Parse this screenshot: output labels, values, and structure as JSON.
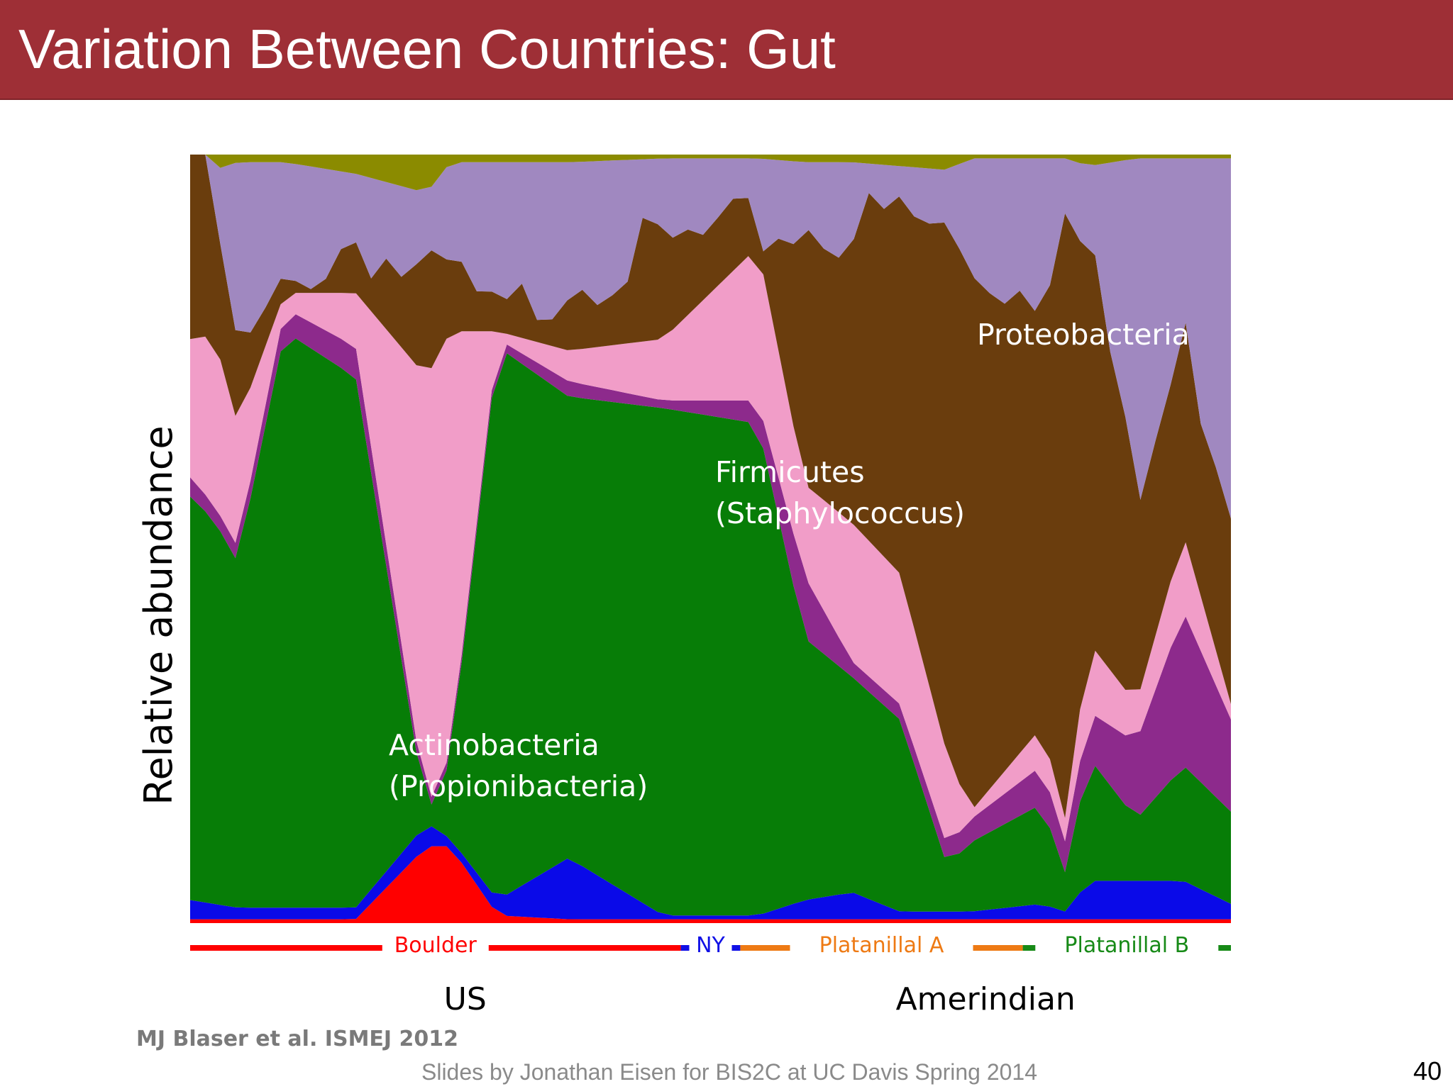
{
  "slide": {
    "title": "Variation Between Countries: Gut",
    "citation": "MJ Blaser et al. ISMEJ 2012",
    "footer": "Slides by Jonathan Eisen for BIS2C at UC Davis Spring 2014",
    "page_number": "40"
  },
  "colors": {
    "title_bar": "#9e2f36",
    "boulder": "#ff0000",
    "ny": "#1010e6",
    "platanillal_a": "#ee7a14",
    "platanillal_b": "#178a17"
  },
  "chart_data": {
    "type": "area",
    "stacked": true,
    "normalized": true,
    "ylabel": "Relative abundance",
    "ylim": [
      0,
      1
    ],
    "annotations": [
      {
        "text": "Proteobacteria",
        "color": "#ffffff"
      },
      {
        "text": "Firmicutes\n(Staphylococcus)",
        "color": "#ffffff"
      },
      {
        "text": "Actinobacteria\n(Propionibacteria)",
        "color": "#ffffff"
      }
    ],
    "groups": [
      {
        "name": "Boulder",
        "color": "#ff0000",
        "start": 0,
        "end": 33
      },
      {
        "name": "NY",
        "color": "#1010e6",
        "start": 33,
        "end": 37
      },
      {
        "name": "Platanillal A",
        "color": "#ee7a14",
        "start": 37,
        "end": 56
      },
      {
        "name": "Platanillal B",
        "color": "#178a17",
        "start": 56,
        "end": 70
      }
    ],
    "categories": [
      {
        "name": "US",
        "start": 0,
        "end": 37
      },
      {
        "name": "Amerindian",
        "start": 37,
        "end": 70
      }
    ],
    "boundaries": [
      0.0,
      0.025,
      0.05,
      0.1,
      0.175,
      0.25,
      0.275,
      0.325,
      0.4,
      0.5,
      0.6,
      0.65,
      0.7,
      0.75,
      0.8,
      0.825,
      0.9,
      0.925,
      0.95,
      1.0,
      1.05,
      1.1
    ],
    "samples": [
      {
        "top": 0.845,
        "reds": 0.005,
        "blue": 0.025,
        "green": 0.525,
        "purple": 0.025,
        "pink": 0.18,
        "brown": 0.3,
        "top_misc": 0.02
      },
      {
        "top": 0.88,
        "reds": 0.005,
        "blue": 0.02,
        "green": 0.5,
        "purple": 0.02,
        "pink": 0.22,
        "brown": 0.2,
        "top_misc": 0.02
      },
      {
        "top": 0.76,
        "reds": 0.005,
        "blue": 0.015,
        "green": 0.45,
        "purple": 0.02,
        "pink": 0.16,
        "brown": 0.1,
        "top_misc": 0.01
      },
      {
        "top": 0.96,
        "reds": 0.005,
        "blue": 0.015,
        "green": 0.75,
        "purple": 0.03,
        "pink": 0.02,
        "brown": 0.02,
        "top_misc": 0.01
      },
      {
        "top": 0.945,
        "reds": 0.005,
        "blue": 0.015,
        "green": 0.69,
        "purple": 0.04,
        "pink": 0.07,
        "brown": 0.1,
        "top_misc": 0.025
      },
      {
        "top": 0.9,
        "reds": 0.1,
        "blue": 0.03,
        "green": 0.01,
        "purple": 0.01,
        "pink": 0.56,
        "brown": 0.14,
        "top_misc": 0.05
      },
      {
        "top": 0.88,
        "reds": 0.1,
        "blue": 0.01,
        "green": 0.1,
        "purple": 0.01,
        "pink": 0.55,
        "brown": 0.1,
        "top_misc": 0.01
      },
      {
        "top": 0.8,
        "reds": 0.01,
        "blue": 0.02,
        "green": 0.72,
        "purple": 0.01,
        "pink": 0.01,
        "brown": 0.03,
        "top_misc": 0.01
      },
      {
        "top": 0.88,
        "reds": 0.005,
        "blue": 0.08,
        "green": 0.6,
        "purple": 0.02,
        "pink": 0.04,
        "brown": 0.125,
        "top_misc": 0.01
      },
      {
        "top": 0.9,
        "reds": 0.005,
        "blue": 0.005,
        "green": 0.66,
        "purple": 0.01,
        "pink": 0.08,
        "brown": 0.14,
        "top_misc": 0.005
      },
      {
        "top": 0.925,
        "reds": 0.005,
        "blue": 0.005,
        "green": 0.64,
        "purple": 0.03,
        "pink": 0.2,
        "brown": 0.045,
        "top_misc": 0.005
      },
      {
        "top": 0.93,
        "reds": 0.005,
        "blue": 0.025,
        "green": 0.34,
        "purple": 0.08,
        "pink": 0.12,
        "brown": 0.36,
        "top_misc": 0.01
      },
      {
        "top": 0.93,
        "reds": 0.005,
        "blue": 0.035,
        "green": 0.28,
        "purple": 0.02,
        "pink": 0.18,
        "brown": 0.41,
        "top_misc": 0.01
      },
      {
        "top": 0.97,
        "reds": 0.005,
        "blue": 0.01,
        "green": 0.25,
        "purple": 0.02,
        "pink": 0.17,
        "brown": 0.49,
        "top_misc": 0.015
      },
      {
        "top": 0.99,
        "reds": 0.005,
        "blue": 0.01,
        "green": 0.06,
        "purple": 0.025,
        "pink": 0.12,
        "brown": 0.7,
        "top_misc": 0.02
      },
      {
        "top": 0.88,
        "reds": 0.005,
        "blue": 0.01,
        "green": 0.09,
        "purple": 0.03,
        "pink": 0.01,
        "brown": 0.73,
        "top_misc": 0.005
      },
      {
        "top": 0.85,
        "reds": 0.005,
        "blue": 0.02,
        "green": 0.13,
        "purple": 0.05,
        "pink": 0.05,
        "brown": 0.59,
        "top_misc": 0.005
      },
      {
        "top": 0.99,
        "reds": 0.005,
        "blue": 0.01,
        "green": 0.05,
        "purple": 0.04,
        "pink": 0.03,
        "brown": 0.85,
        "top_misc": 0.005
      },
      {
        "top": 0.95,
        "reds": 0.005,
        "blue": 0.05,
        "green": 0.16,
        "purple": 0.06,
        "pink": 0.09,
        "brown": 0.57,
        "top_misc": 0.015
      },
      {
        "top": 0.56,
        "reds": 0.005,
        "blue": 0.05,
        "green": 0.08,
        "purple": 0.1,
        "pink": 0.05,
        "brown": 0.27,
        "top_misc": 0.005
      },
      {
        "top": 0.79,
        "reds": 0.005,
        "blue": 0.05,
        "green": 0.15,
        "purple": 0.2,
        "pink": 0.1,
        "brown": 0.28,
        "top_misc": 0.005
      },
      {
        "top": 0.59,
        "reds": 0.005,
        "blue": 0.02,
        "green": 0.12,
        "purple": 0.12,
        "pink": 0.02,
        "brown": 0.3,
        "top_misc": 0.005
      }
    ]
  }
}
